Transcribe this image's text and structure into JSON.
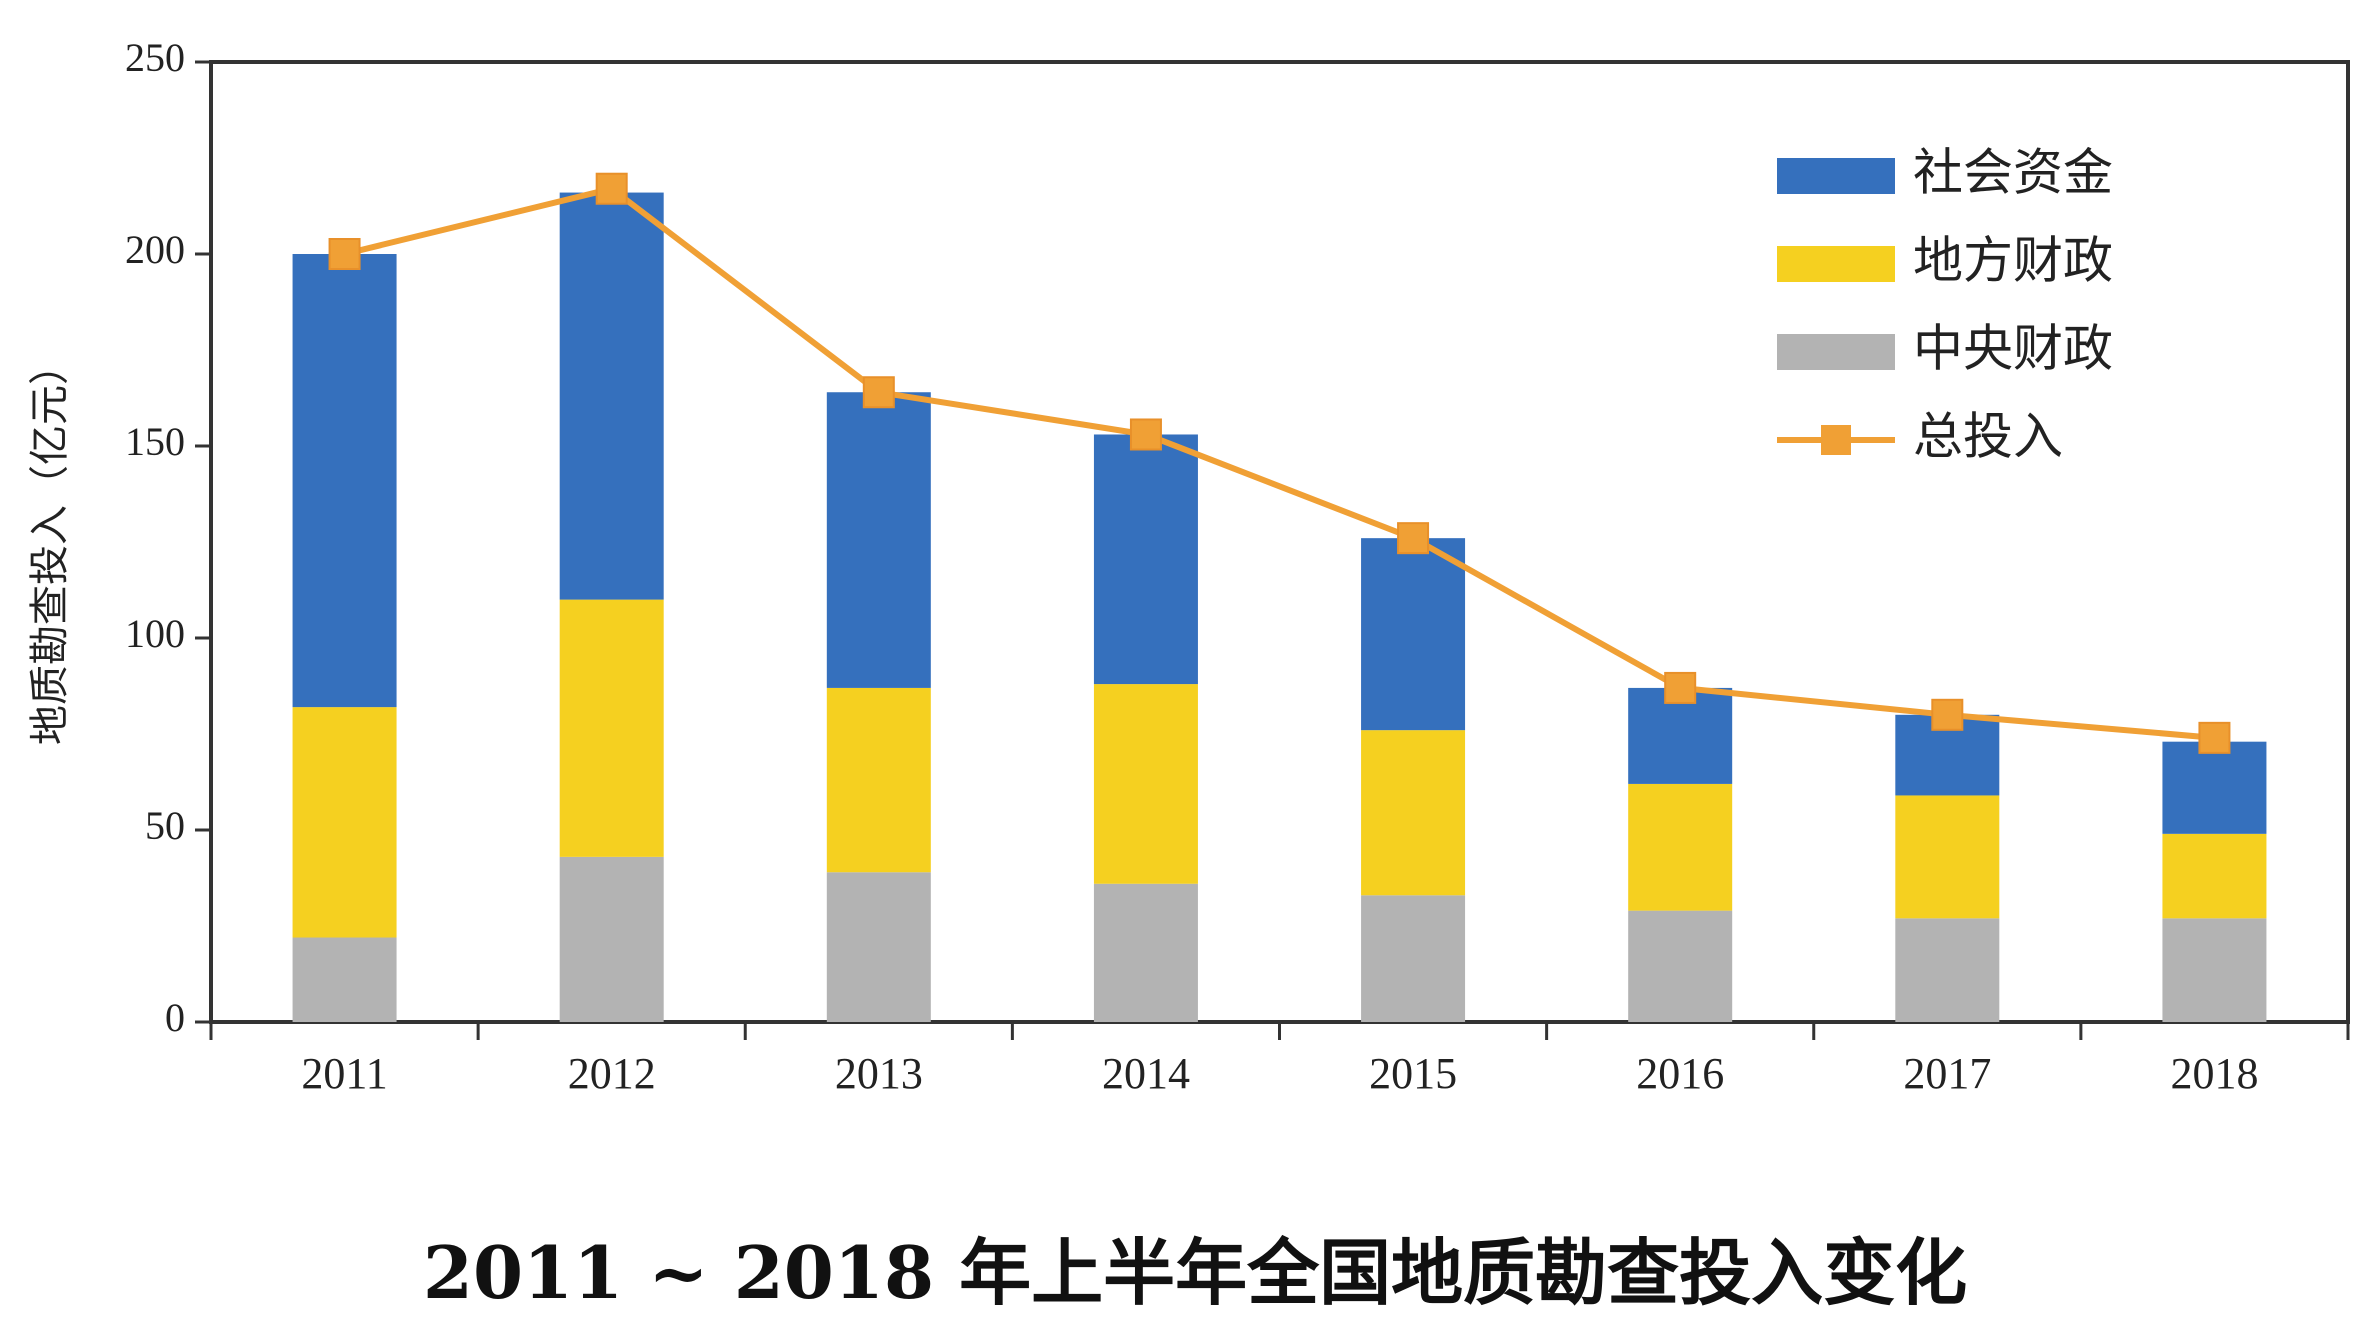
{
  "chart_data": {
    "type": "bar",
    "stacked": true,
    "title": "2011 ~ 2018 年上半年全国地质勘查投入变化",
    "xlabel": "",
    "ylabel": "地质勘查投入（亿元）",
    "ylim": [
      0,
      250
    ],
    "yticks": [
      0,
      50,
      100,
      150,
      200,
      250
    ],
    "categories": [
      "2011",
      "2012",
      "2013",
      "2014",
      "2015",
      "2016",
      "2017",
      "2018"
    ],
    "series": [
      {
        "name": "中央财政",
        "color": "#b3b3b3",
        "values": [
          22,
          43,
          39,
          36,
          33,
          29,
          27,
          27
        ]
      },
      {
        "name": "地方财政",
        "color": "#f5d020",
        "values": [
          60,
          67,
          48,
          52,
          43,
          33,
          32,
          22
        ]
      },
      {
        "name": "社会资金",
        "color": "#3570bd",
        "values": [
          118,
          106,
          77,
          65,
          50,
          25,
          21,
          24
        ]
      }
    ],
    "line": {
      "name": "总投入",
      "color": "#f0a035",
      "values": [
        200,
        217,
        164,
        153,
        126,
        87,
        80,
        74
      ]
    },
    "legend_position": "top-right",
    "legend_order": [
      "社会资金",
      "地方财政",
      "中央财政",
      "总投入"
    ],
    "grid": false
  }
}
